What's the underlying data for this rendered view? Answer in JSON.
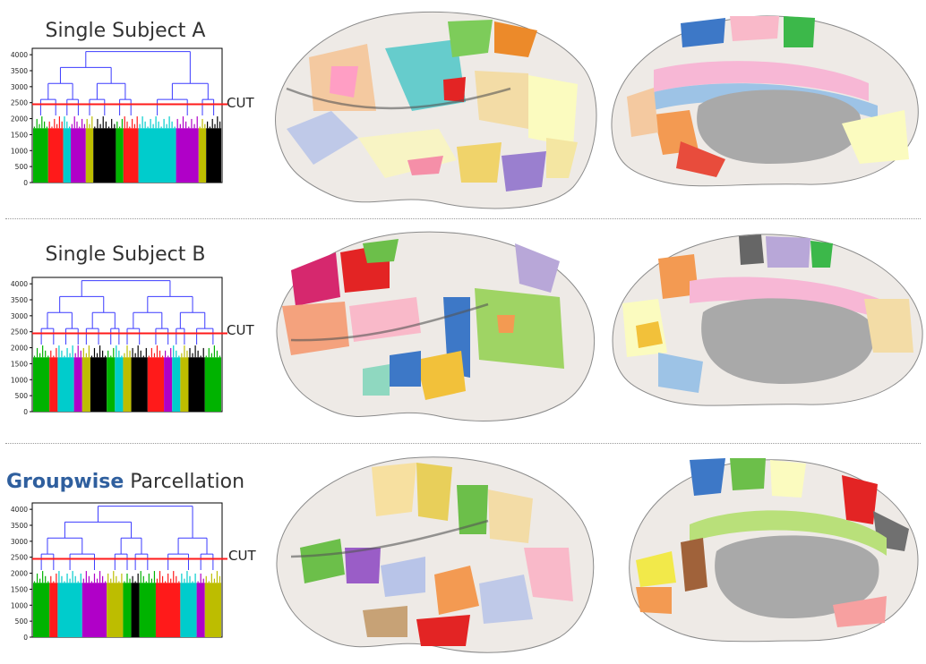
{
  "panels": [
    {
      "title_plain": "Single Subject A",
      "title_highlight": "",
      "cut_label": "CUT",
      "yticks": [
        "4000",
        "3500",
        "3000",
        "2500",
        "2000",
        "1500",
        "1000",
        "500",
        "0"
      ],
      "cut_value": 2450,
      "segments": [
        "#00b300",
        "#ff1a1a",
        "#00cccc",
        "#b000c8",
        "#bdbd00",
        "#000000",
        "#00b300",
        "#ff1a1a",
        "#00cccc",
        "#b000c8",
        "#bdbd00",
        "#000000"
      ],
      "segment_widths": [
        2,
        2,
        1,
        2,
        1,
        3,
        1,
        2,
        5,
        3,
        1,
        2
      ]
    },
    {
      "title_plain": "Single Subject B",
      "title_highlight": "",
      "cut_label": "CUT",
      "yticks": [
        "4000",
        "3500",
        "3000",
        "2500",
        "2000",
        "1500",
        "1000",
        "500",
        "0"
      ],
      "cut_value": 2450,
      "segments": [
        "#00b300",
        "#ff1a1a",
        "#00cccc",
        "#b000c8",
        "#bdbd00",
        "#000000",
        "#00b300",
        "#00cccc",
        "#bdbd00",
        "#000000",
        "#ff1a1a",
        "#b000c8",
        "#00cccc",
        "#bdbd00",
        "#000000",
        "#00b300"
      ],
      "segment_widths": [
        2,
        1,
        2,
        1,
        1,
        2,
        1,
        1,
        1,
        2,
        2,
        1,
        1,
        1,
        2,
        2
      ]
    },
    {
      "title_plain": "Parcellation",
      "title_highlight": "Groupwise",
      "cut_label": "CUT",
      "yticks": [
        "4000",
        "3500",
        "3000",
        "2500",
        "2000",
        "1500",
        "1000",
        "500",
        "0"
      ],
      "cut_value": 2450,
      "segments": [
        "#00b300",
        "#ff1a1a",
        "#00cccc",
        "#b000c8",
        "#bdbd00",
        "#00b300",
        "#000000",
        "#00b300",
        "#ff1a1a",
        "#00cccc",
        "#b000c8",
        "#bdbd00"
      ],
      "segment_widths": [
        2,
        1,
        3,
        3,
        2,
        1,
        1,
        2,
        3,
        2,
        1,
        2
      ]
    }
  ],
  "colors": {
    "dendrogram_link": "#3b3bff",
    "cut_line": "#ff1a1a",
    "axis": "#000000",
    "brain_base": "#eeeae6",
    "brain_medial_gray": "#a9a9a9"
  }
}
